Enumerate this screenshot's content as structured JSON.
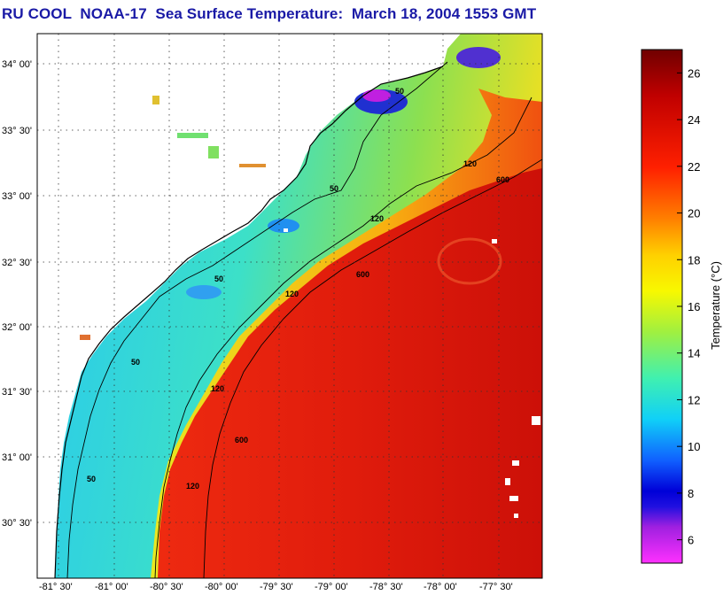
{
  "title": "RU COOL  NOAA-17  Sea Surface Temperature:  March 18, 2004 1553 GMT",
  "latitude_ticks": [
    "34° 00'",
    "33° 30'",
    "33° 00'",
    "32° 30'",
    "32° 00'",
    "31° 30'",
    "31° 00'",
    "30° 30'"
  ],
  "longitude_ticks": [
    "-81° 30'",
    "-81° 00'",
    "-80° 30'",
    "-80° 00'",
    "-79° 30'",
    "-79° 00'",
    "-78° 30'",
    "-78° 00'",
    "-77° 30'"
  ],
  "isobath_labels": [
    "50",
    "120",
    "600"
  ],
  "colorbar": {
    "title": "Temperature (°C)",
    "ticks": [
      "26",
      "24",
      "22",
      "20",
      "18",
      "16",
      "14",
      "12",
      "10",
      "8",
      "6"
    ],
    "range_min": 5,
    "range_max": 27
  },
  "colors": {
    "title": "#1a1aa6",
    "land": "#ffffff",
    "warm_water": "#e01a10",
    "cold_water": "#30c8e8",
    "contour": "#000000"
  }
}
